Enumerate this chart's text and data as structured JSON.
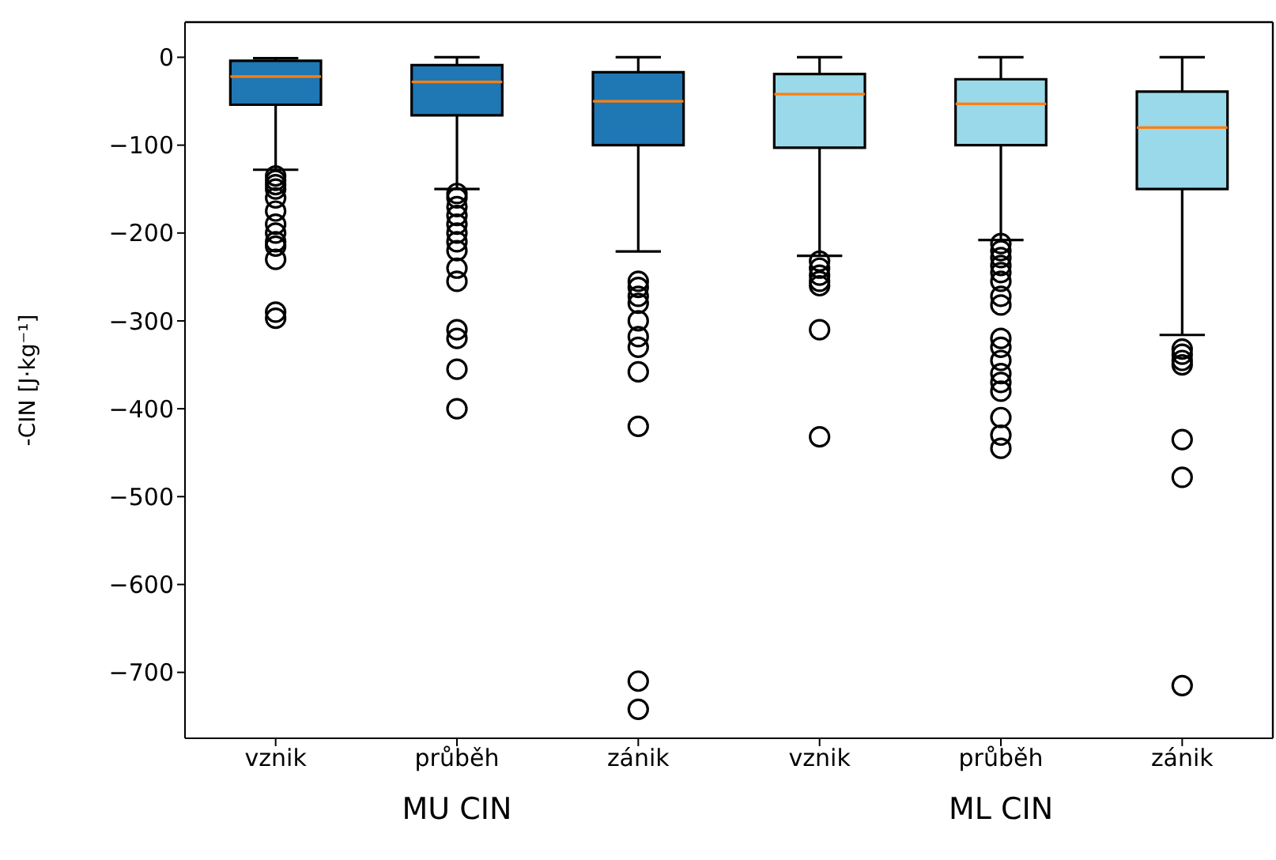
{
  "chart_data": {
    "type": "box",
    "ylabel": "-CIN [J·kg⁻¹]",
    "categories": [
      "vznik",
      "průběh",
      "zánik",
      "vznik",
      "průběh",
      "zánik"
    ],
    "colors": [
      "#1f77b4",
      "#1f77b4",
      "#1f77b4",
      "#99d9ea",
      "#99d9ea",
      "#99d9ea"
    ],
    "boxes": [
      {
        "low": -128,
        "q1": -54,
        "median": -22,
        "q3": -4,
        "high": -1,
        "outliers": [
          -135,
          -140,
          -145,
          -150,
          -160,
          -175,
          -190,
          -200,
          -210,
          -215,
          -230,
          -290,
          -297
        ]
      },
      {
        "low": -150,
        "q1": -66,
        "median": -28,
        "q3": -9,
        "high": 0,
        "outliers": [
          -155,
          -160,
          -170,
          -180,
          -190,
          -200,
          -210,
          -220,
          -240,
          -255,
          -310,
          -320,
          -355,
          -400
        ]
      },
      {
        "low": -221,
        "q1": -100,
        "median": -50,
        "q3": -17,
        "high": 0,
        "outliers": [
          -255,
          -262,
          -272,
          -280,
          -300,
          -318,
          -330,
          -358,
          -420,
          -710,
          -742
        ]
      },
      {
        "low": -226,
        "q1": -103,
        "median": -42,
        "q3": -19,
        "high": 0,
        "outliers": [
          -232,
          -240,
          -248,
          -255,
          -260,
          -310,
          -432
        ]
      },
      {
        "low": -208,
        "q1": -100,
        "median": -53,
        "q3": -25,
        "high": 0,
        "outliers": [
          -212,
          -220,
          -228,
          -237,
          -245,
          -255,
          -272,
          -282,
          -320,
          -330,
          -345,
          -360,
          -370,
          -380,
          -410,
          -430,
          -445
        ]
      },
      {
        "low": -316,
        "q1": -150,
        "median": -80,
        "q3": -39,
        "high": 0,
        "outliers": [
          -332,
          -338,
          -345,
          -350,
          -435,
          -478,
          -715
        ]
      }
    ],
    "ylim": [
      -775,
      40
    ],
    "yticks": [
      0,
      -100,
      -200,
      -300,
      -400,
      -500,
      -600,
      -700
    ],
    "annotations": [
      "MU CIN",
      "ML CIN"
    ]
  }
}
